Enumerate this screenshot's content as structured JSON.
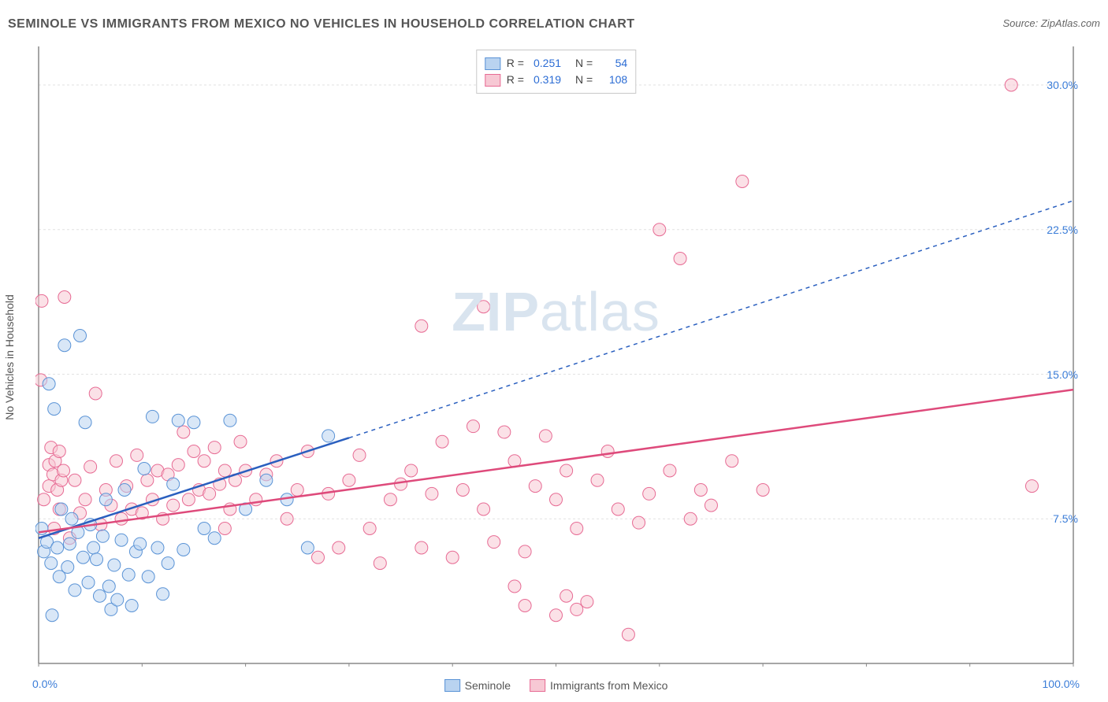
{
  "title": "SEMINOLE VS IMMIGRANTS FROM MEXICO NO VEHICLES IN HOUSEHOLD CORRELATION CHART",
  "source": "Source: ZipAtlas.com",
  "ylabel": "No Vehicles in Household",
  "watermark_zip": "ZIP",
  "watermark_atlas": "atlas",
  "chart": {
    "type": "scatter-with-regression",
    "xlim": [
      0,
      100
    ],
    "ylim": [
      0,
      32
    ],
    "yticks": [
      7.5,
      15.0,
      22.5,
      30.0
    ],
    "ytick_labels": [
      "7.5%",
      "15.0%",
      "22.5%",
      "30.0%"
    ],
    "x_left_label": "0.0%",
    "x_right_label": "100.0%",
    "xtick_positions": [
      0,
      10,
      20,
      30,
      40,
      50,
      60,
      70,
      80,
      90,
      100
    ],
    "grid_color": "#e2e2e2",
    "axis_color": "#888888",
    "background_color": "#ffffff",
    "series": [
      {
        "name": "Seminole",
        "color_fill": "#b9d3f0",
        "color_stroke": "#5a93d6",
        "line_color": "#2a5fbf",
        "marker_radius": 8,
        "marker_opacity": 0.55,
        "R": "0.251",
        "N": "54",
        "regression": {
          "x1": 0,
          "y1": 6.5,
          "x2_solid": 30,
          "y2_solid": 11.7,
          "x2": 100,
          "y2": 24.0
        },
        "points": [
          [
            0.3,
            7.0
          ],
          [
            0.5,
            5.8
          ],
          [
            0.8,
            6.3
          ],
          [
            1.0,
            14.5
          ],
          [
            1.2,
            5.2
          ],
          [
            1.5,
            13.2
          ],
          [
            1.8,
            6.0
          ],
          [
            2.0,
            4.5
          ],
          [
            2.2,
            8.0
          ],
          [
            2.5,
            16.5
          ],
          [
            2.8,
            5.0
          ],
          [
            3.0,
            6.2
          ],
          [
            3.2,
            7.5
          ],
          [
            3.5,
            3.8
          ],
          [
            3.8,
            6.8
          ],
          [
            4.0,
            17.0
          ],
          [
            4.3,
            5.5
          ],
          [
            4.5,
            12.5
          ],
          [
            4.8,
            4.2
          ],
          [
            5.0,
            7.2
          ],
          [
            5.3,
            6.0
          ],
          [
            5.6,
            5.4
          ],
          [
            5.9,
            3.5
          ],
          [
            6.2,
            6.6
          ],
          [
            6.5,
            8.5
          ],
          [
            6.8,
            4.0
          ],
          [
            7.0,
            2.8
          ],
          [
            7.3,
            5.1
          ],
          [
            7.6,
            3.3
          ],
          [
            8.0,
            6.4
          ],
          [
            8.3,
            9.0
          ],
          [
            8.7,
            4.6
          ],
          [
            9.0,
            3.0
          ],
          [
            9.4,
            5.8
          ],
          [
            9.8,
            6.2
          ],
          [
            10.2,
            10.1
          ],
          [
            10.6,
            4.5
          ],
          [
            11.0,
            12.8
          ],
          [
            11.5,
            6.0
          ],
          [
            12.0,
            3.6
          ],
          [
            12.5,
            5.2
          ],
          [
            13.0,
            9.3
          ],
          [
            13.5,
            12.6
          ],
          [
            14.0,
            5.9
          ],
          [
            15.0,
            12.5
          ],
          [
            16.0,
            7.0
          ],
          [
            17.0,
            6.5
          ],
          [
            18.5,
            12.6
          ],
          [
            20.0,
            8.0
          ],
          [
            22.0,
            9.5
          ],
          [
            24.0,
            8.5
          ],
          [
            26.0,
            6.0
          ],
          [
            28.0,
            11.8
          ],
          [
            1.3,
            2.5
          ]
        ]
      },
      {
        "name": "Immigrants from Mexico",
        "color_fill": "#f7c8d4",
        "color_stroke": "#e76b94",
        "line_color": "#de4a7b",
        "marker_radius": 8,
        "marker_opacity": 0.55,
        "R": "0.319",
        "N": "108",
        "regression": {
          "x1": 0,
          "y1": 6.8,
          "x2_solid": 100,
          "y2_solid": 14.2,
          "x2": 100,
          "y2": 14.2
        },
        "points": [
          [
            0.5,
            8.5
          ],
          [
            1.0,
            9.2
          ],
          [
            1.5,
            7.0
          ],
          [
            2.0,
            8.0
          ],
          [
            2.5,
            19.0
          ],
          [
            3.0,
            6.5
          ],
          [
            3.5,
            9.5
          ],
          [
            4.0,
            7.8
          ],
          [
            4.5,
            8.5
          ],
          [
            5.0,
            10.2
          ],
          [
            5.5,
            14.0
          ],
          [
            6.0,
            7.2
          ],
          [
            6.5,
            9.0
          ],
          [
            7.0,
            8.2
          ],
          [
            7.5,
            10.5
          ],
          [
            8.0,
            7.5
          ],
          [
            8.5,
            9.2
          ],
          [
            9.0,
            8.0
          ],
          [
            9.5,
            10.8
          ],
          [
            10.0,
            7.8
          ],
          [
            10.5,
            9.5
          ],
          [
            11.0,
            8.5
          ],
          [
            11.5,
            10.0
          ],
          [
            12.0,
            7.5
          ],
          [
            12.5,
            9.8
          ],
          [
            13.0,
            8.2
          ],
          [
            13.5,
            10.3
          ],
          [
            14.0,
            12.0
          ],
          [
            14.5,
            8.5
          ],
          [
            15.0,
            11.0
          ],
          [
            15.5,
            9.0
          ],
          [
            16.0,
            10.5
          ],
          [
            16.5,
            8.8
          ],
          [
            17.0,
            11.2
          ],
          [
            17.5,
            9.3
          ],
          [
            18.0,
            10.0
          ],
          [
            18.5,
            8.0
          ],
          [
            19.0,
            9.5
          ],
          [
            19.5,
            11.5
          ],
          [
            20.0,
            10.0
          ],
          [
            21.0,
            8.5
          ],
          [
            22.0,
            9.8
          ],
          [
            23.0,
            10.5
          ],
          [
            24.0,
            7.5
          ],
          [
            25.0,
            9.0
          ],
          [
            26.0,
            11.0
          ],
          [
            27.0,
            5.5
          ],
          [
            28.0,
            8.8
          ],
          [
            29.0,
            6.0
          ],
          [
            30.0,
            9.5
          ],
          [
            31.0,
            10.8
          ],
          [
            32.0,
            7.0
          ],
          [
            33.0,
            5.2
          ],
          [
            34.0,
            8.5
          ],
          [
            35.0,
            9.3
          ],
          [
            36.0,
            10.0
          ],
          [
            37.0,
            6.0
          ],
          [
            38.0,
            8.8
          ],
          [
            39.0,
            11.5
          ],
          [
            40.0,
            5.5
          ],
          [
            41.0,
            9.0
          ],
          [
            42.0,
            12.3
          ],
          [
            43.0,
            8.0
          ],
          [
            44.0,
            6.3
          ],
          [
            45.0,
            12.0
          ],
          [
            46.0,
            10.5
          ],
          [
            47.0,
            5.8
          ],
          [
            48.0,
            9.2
          ],
          [
            49.0,
            11.8
          ],
          [
            50.0,
            8.5
          ],
          [
            51.0,
            10.0
          ],
          [
            52.0,
            7.0
          ],
          [
            53.0,
            3.2
          ],
          [
            54.0,
            9.5
          ],
          [
            55.0,
            11.0
          ],
          [
            56.0,
            8.0
          ],
          [
            57.0,
            1.5
          ],
          [
            58.0,
            7.3
          ],
          [
            59.0,
            8.8
          ],
          [
            60.0,
            22.5
          ],
          [
            61.0,
            10.0
          ],
          [
            62.0,
            21.0
          ],
          [
            63.0,
            7.5
          ],
          [
            64.0,
            9.0
          ],
          [
            65.0,
            8.2
          ],
          [
            67.0,
            10.5
          ],
          [
            68.0,
            25.0
          ],
          [
            70.0,
            9.0
          ],
          [
            43.0,
            18.5
          ],
          [
            37.0,
            17.5
          ],
          [
            0.3,
            18.8
          ],
          [
            0.2,
            14.7
          ],
          [
            1.0,
            10.3
          ],
          [
            1.2,
            11.2
          ],
          [
            1.4,
            9.8
          ],
          [
            1.6,
            10.5
          ],
          [
            1.8,
            9.0
          ],
          [
            2.0,
            11.0
          ],
          [
            2.2,
            9.5
          ],
          [
            2.4,
            10.0
          ],
          [
            96.0,
            9.2
          ],
          [
            94.0,
            30.0
          ],
          [
            52.0,
            2.8
          ],
          [
            51.0,
            3.5
          ],
          [
            50.0,
            2.5
          ],
          [
            47.0,
            3.0
          ],
          [
            46.0,
            4.0
          ],
          [
            18.0,
            7.0
          ]
        ]
      }
    ]
  },
  "legend_bottom": [
    {
      "label": "Seminole",
      "fill": "#b9d3f0",
      "stroke": "#5a93d6"
    },
    {
      "label": "Immigrants from Mexico",
      "fill": "#f7c8d4",
      "stroke": "#e76b94"
    }
  ]
}
